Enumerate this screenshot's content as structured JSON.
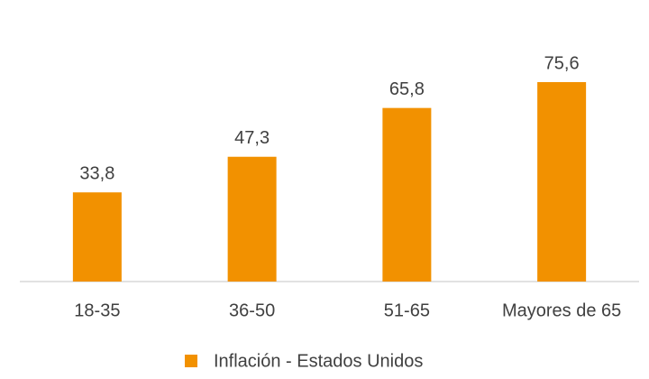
{
  "chart_data": {
    "type": "bar",
    "categories": [
      "18-35",
      "36-50",
      "51-65",
      "Mayores de 65"
    ],
    "series": [
      {
        "name": "Inflación - Estados Unidos",
        "color": "#f29100",
        "values": [
          33.8,
          47.3,
          65.8,
          75.6
        ],
        "value_labels": [
          "33,8",
          "47,3",
          "65,8",
          "75,6"
        ]
      }
    ],
    "legend": "bottom"
  }
}
